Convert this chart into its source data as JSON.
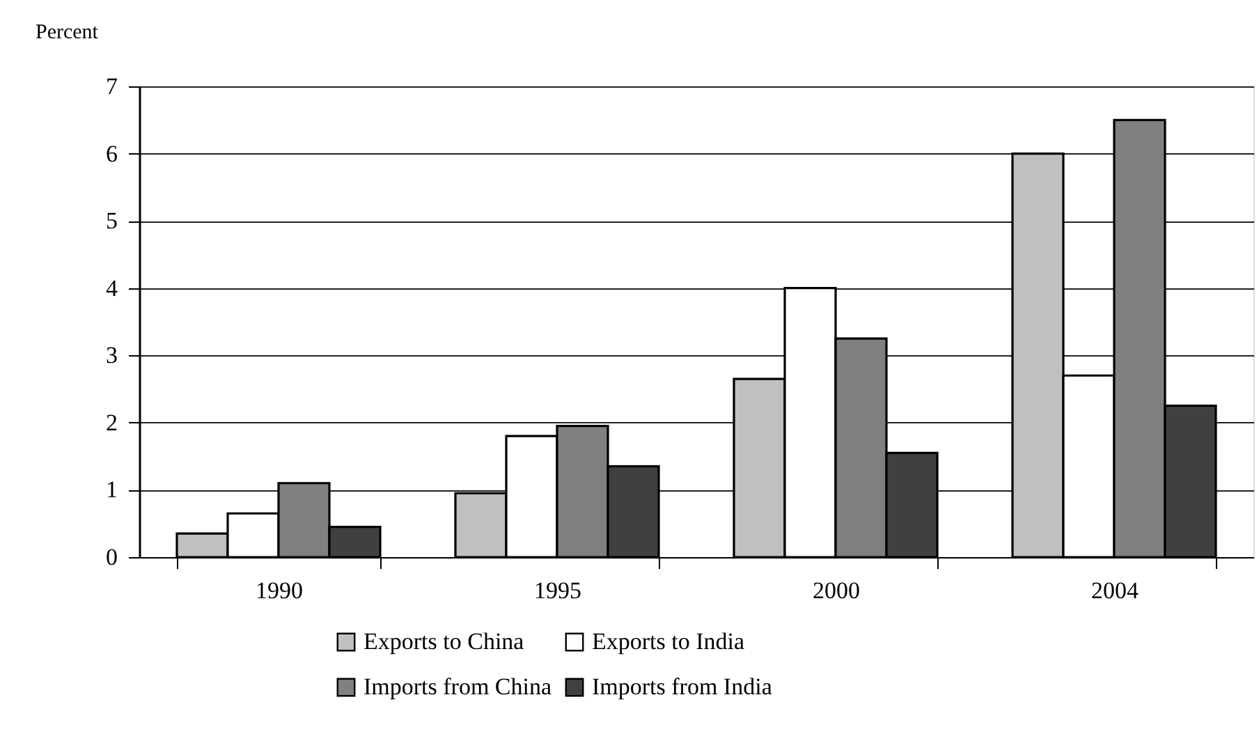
{
  "chart_data": {
    "type": "bar",
    "ylabel": "Percent",
    "categories": [
      "1990",
      "1995",
      "2000",
      "2004"
    ],
    "series": [
      {
        "name": "Exports to China",
        "color": "#c0c0c0",
        "values": [
          0.35,
          0.95,
          2.65,
          6.0
        ]
      },
      {
        "name": "Exports to India",
        "color": "#ffffff",
        "values": [
          0.65,
          1.8,
          4.0,
          2.7
        ]
      },
      {
        "name": "Imports from China",
        "color": "#808080",
        "values": [
          1.1,
          1.95,
          3.25,
          6.5
        ]
      },
      {
        "name": "Imports from India",
        "color": "#404040",
        "values": [
          0.45,
          1.35,
          1.55,
          2.25
        ]
      }
    ],
    "ylim": [
      0,
      7
    ],
    "yticks": [
      0,
      1,
      2,
      3,
      4,
      5,
      6,
      7
    ],
    "grid": "y",
    "legend": "bottom"
  }
}
